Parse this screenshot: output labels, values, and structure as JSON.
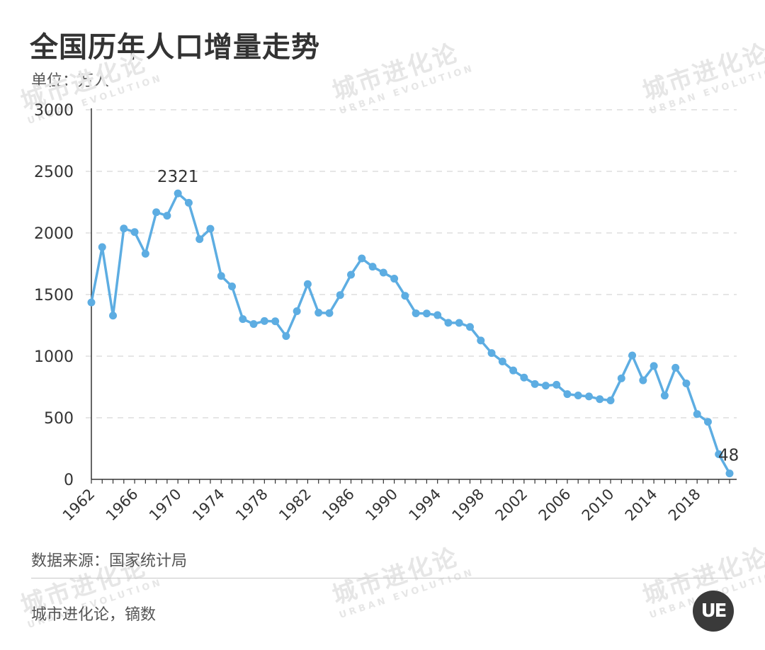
{
  "title": "全国历年人口增量走势",
  "unit": "单位：万人",
  "source": "数据来源：国家统计局",
  "credit": "城市进化论，镝数",
  "logo_text": "UE",
  "watermark": {
    "cn": "城市进化论",
    "en": "URBAN EVOLUTION"
  },
  "colors": {
    "line": "#5dade2",
    "grid": "#dddddd",
    "axis": "#333333",
    "text": "#333333"
  },
  "chart_data": {
    "type": "line",
    "title": "全国历年人口增量走势",
    "ylabel": "单位：万人",
    "xlabel": "",
    "ylim": [
      0,
      3000
    ],
    "yticks": [
      0,
      500,
      1000,
      1500,
      2000,
      2500,
      3000
    ],
    "xtick_labels": [
      "1962",
      "1966",
      "1970",
      "1974",
      "1978",
      "1982",
      "1986",
      "1990",
      "1994",
      "1998",
      "2002",
      "2006",
      "2010",
      "2014",
      "2018"
    ],
    "grid": true,
    "x": [
      1962,
      1963,
      1964,
      1965,
      1966,
      1967,
      1968,
      1969,
      1970,
      1971,
      1972,
      1973,
      1974,
      1975,
      1976,
      1977,
      1978,
      1979,
      1980,
      1981,
      1982,
      1983,
      1984,
      1985,
      1986,
      1987,
      1988,
      1989,
      1990,
      1991,
      1992,
      1993,
      1994,
      1995,
      1996,
      1997,
      1998,
      1999,
      2000,
      2001,
      2002,
      2003,
      2004,
      2005,
      2006,
      2007,
      2008,
      2009,
      2010,
      2011,
      2012,
      2013,
      2014,
      2015,
      2016,
      2017,
      2018,
      2019,
      2020,
      2021
    ],
    "series": [
      {
        "values": [
          1436,
          1885,
          1329,
          2036,
          2007,
          1831,
          2168,
          2140,
          2321,
          2245,
          1950,
          2034,
          1651,
          1566,
          1301,
          1261,
          1285,
          1283,
          1163,
          1365,
          1585,
          1353,
          1349,
          1496,
          1661,
          1793,
          1726,
          1678,
          1629,
          1490,
          1348,
          1346,
          1333,
          1271,
          1270,
          1237,
          1127,
          1025,
          957,
          884,
          826,
          774,
          761,
          768,
          692,
          681,
          673,
          651,
          641,
          820,
          1006,
          804,
          920,
          680,
          906,
          779,
          530,
          467,
          204,
          48
        ],
        "labels": [
          {
            "x": 1970,
            "text": "2321"
          },
          {
            "x": 2021,
            "text": "48"
          }
        ]
      }
    ]
  }
}
